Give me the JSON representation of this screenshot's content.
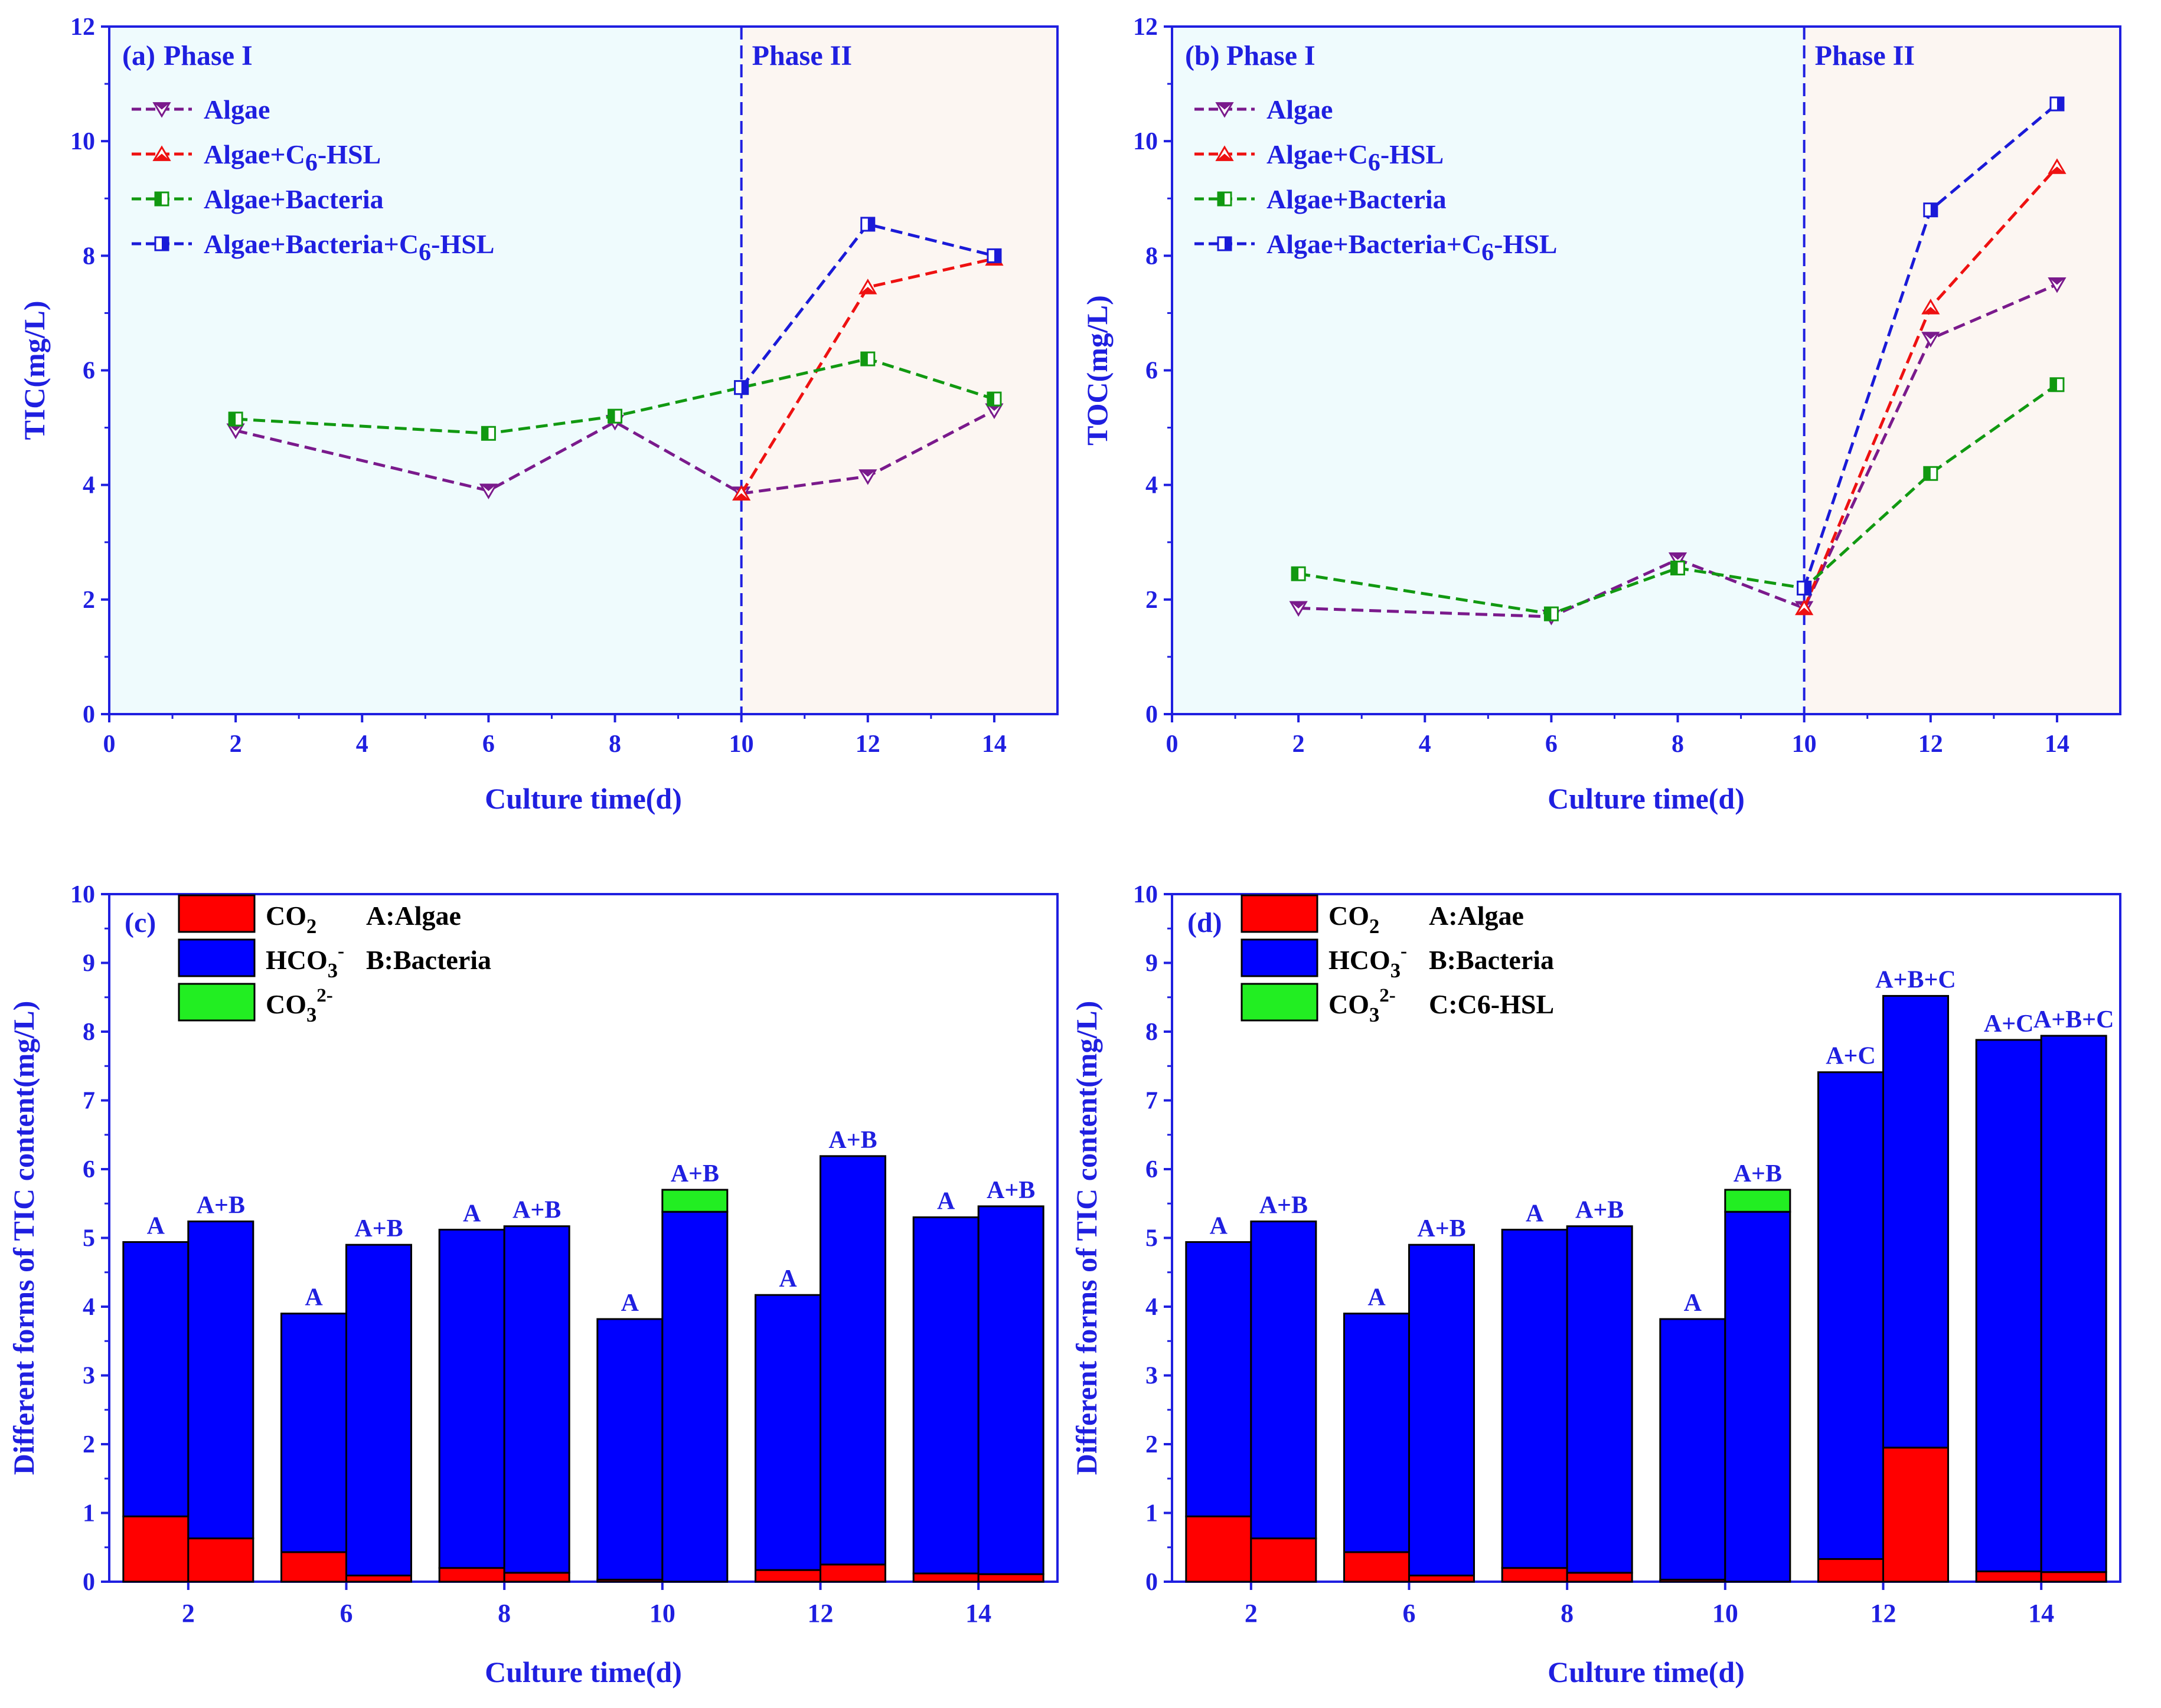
{
  "colors": {
    "axis": "#1f1fe0",
    "phase1_bg": "#effbfd",
    "phase2_bg": "#fcf6f2",
    "algae": "#7a1a8c",
    "algae_c6": "#ee1111",
    "algae_bacteria": "#119911",
    "algae_bacteria_c6": "#1a1ad8",
    "co2": "#ff0000",
    "hco3": "#0000ff",
    "co3": "#22ee22"
  },
  "chart_data": [
    {
      "id": "a",
      "type": "line",
      "panel_label": "(a)",
      "phase_labels": [
        "Phase I",
        "Phase II"
      ],
      "phase_boundary_x": 10,
      "xlabel": "Culture time(d)",
      "ylabel": "TIC(mg/L)",
      "xlim": [
        0,
        15
      ],
      "ylim": [
        0,
        12
      ],
      "xticks": [
        "0",
        "2",
        "4",
        "6",
        "8",
        "10",
        "12",
        "14"
      ],
      "yticks": [
        "0",
        "2",
        "4",
        "6",
        "8",
        "10",
        "12"
      ],
      "legend": {
        "location": "top-left",
        "entries": [
          {
            "name": "Algae",
            "marker": "triangle-down"
          },
          {
            "name": "Algae+C",
            "sub": "6",
            "suffix": "-HSL",
            "marker": "triangle-up"
          },
          {
            "name": "Algae+Bacteria",
            "marker": "square"
          },
          {
            "name": "Algae+Bacteria+C",
            "sub": "6",
            "suffix": "-HSL",
            "marker": "square"
          }
        ]
      },
      "series": [
        {
          "name": "Algae",
          "x": [
            2,
            6,
            8,
            10,
            12,
            14
          ],
          "y": [
            4.95,
            3.9,
            5.1,
            3.85,
            4.15,
            5.3
          ]
        },
        {
          "name": "Algae+C6-HSL",
          "x": [
            10,
            12,
            14
          ],
          "y": [
            3.85,
            7.45,
            7.95
          ]
        },
        {
          "name": "Algae+Bacteria",
          "x": [
            2,
            6,
            8,
            10,
            12,
            14
          ],
          "y": [
            5.15,
            4.9,
            5.2,
            5.7,
            6.2,
            5.5
          ]
        },
        {
          "name": "Algae+Bacteria+C6-HSL",
          "x": [
            10,
            12,
            14
          ],
          "y": [
            5.7,
            8.55,
            8.0
          ]
        }
      ]
    },
    {
      "id": "b",
      "type": "line",
      "panel_label": "(b)",
      "phase_labels": [
        "Phase I",
        "Phase II"
      ],
      "phase_boundary_x": 10,
      "xlabel": "Culture time(d)",
      "ylabel": "TOC(mg/L)",
      "xlim": [
        0,
        15
      ],
      "ylim": [
        0,
        12
      ],
      "xticks": [
        "0",
        "2",
        "4",
        "6",
        "8",
        "10",
        "12",
        "14"
      ],
      "yticks": [
        "0",
        "2",
        "4",
        "6",
        "8",
        "10",
        "12"
      ],
      "legend": {
        "location": "top-left",
        "entries": [
          {
            "name": "Algae",
            "marker": "triangle-down"
          },
          {
            "name": "Algae+C",
            "sub": "6",
            "suffix": "-HSL",
            "marker": "triangle-up"
          },
          {
            "name": "Algae+Bacteria",
            "marker": "square"
          },
          {
            "name": "Algae+Bacteria+C",
            "sub": "6",
            "suffix": "-HSL",
            "marker": "square"
          }
        ]
      },
      "series": [
        {
          "name": "Algae",
          "x": [
            2,
            6,
            8,
            10,
            12,
            14
          ],
          "y": [
            1.85,
            1.7,
            2.7,
            1.85,
            6.55,
            7.5
          ]
        },
        {
          "name": "Algae+C6-HSL",
          "x": [
            10,
            12,
            14
          ],
          "y": [
            1.85,
            7.1,
            9.55
          ]
        },
        {
          "name": "Algae+Bacteria",
          "x": [
            2,
            6,
            8,
            10,
            12,
            14
          ],
          "y": [
            2.45,
            1.75,
            2.55,
            2.2,
            4.2,
            5.75
          ]
        },
        {
          "name": "Algae+Bacteria+C6-HSL",
          "x": [
            10,
            12,
            14
          ],
          "y": [
            2.2,
            8.8,
            10.65
          ]
        }
      ]
    },
    {
      "id": "c",
      "type": "bar",
      "stacked": true,
      "panel_label": "(c)",
      "xlabel": "Culture time(d)",
      "ylabel": "Different forms of TIC content(mg/L)",
      "ylim": [
        0,
        10
      ],
      "yticks": [
        "0",
        "1",
        "2",
        "3",
        "4",
        "5",
        "6",
        "7",
        "8",
        "9",
        "10"
      ],
      "categories": [
        "2",
        "6",
        "8",
        "10",
        "12",
        "14"
      ],
      "legend": {
        "location": "top-left",
        "entries": [
          {
            "base": "CO",
            "sub": "2",
            "sup": ""
          },
          {
            "base": "HCO",
            "sub": "3",
            "sup": "-"
          },
          {
            "base": "CO",
            "sub": "3",
            "sup": "2-"
          }
        ]
      },
      "key_lines": [
        "A:Algae",
        "B:Bacteria"
      ],
      "bars": [
        {
          "day": "2",
          "label": "A",
          "co2": 0.95,
          "hco3": 3.99,
          "co3": 0
        },
        {
          "day": "2",
          "label": "A+B",
          "co2": 0.63,
          "hco3": 4.61,
          "co3": 0
        },
        {
          "day": "6",
          "label": "A",
          "co2": 0.43,
          "hco3": 3.47,
          "co3": 0
        },
        {
          "day": "6",
          "label": "A+B",
          "co2": 0.09,
          "hco3": 4.81,
          "co3": 0
        },
        {
          "day": "8",
          "label": "A",
          "co2": 0.2,
          "hco3": 4.92,
          "co3": 0
        },
        {
          "day": "8",
          "label": "A+B",
          "co2": 0.13,
          "hco3": 5.04,
          "co3": 0
        },
        {
          "day": "10",
          "label": "A",
          "co2": 0.03,
          "hco3": 3.79,
          "co3": 0
        },
        {
          "day": "10",
          "label": "A+B",
          "co2": 0.0,
          "hco3": 5.38,
          "co3": 0.32
        },
        {
          "day": "12",
          "label": "A",
          "co2": 0.17,
          "hco3": 4.0,
          "co3": 0
        },
        {
          "day": "12",
          "label": "A+B",
          "co2": 0.25,
          "hco3": 5.94,
          "co3": 0
        },
        {
          "day": "14",
          "label": "A",
          "co2": 0.12,
          "hco3": 5.18,
          "co3": 0
        },
        {
          "day": "14",
          "label": "A+B",
          "co2": 0.11,
          "hco3": 5.35,
          "co3": 0
        }
      ]
    },
    {
      "id": "d",
      "type": "bar",
      "stacked": true,
      "panel_label": "(d)",
      "xlabel": "Culture time(d)",
      "ylabel": "Different forms of TIC content(mg/L)",
      "ylim": [
        0,
        10
      ],
      "yticks": [
        "0",
        "1",
        "2",
        "3",
        "4",
        "5",
        "6",
        "7",
        "8",
        "9",
        "10"
      ],
      "categories": [
        "2",
        "6",
        "8",
        "10",
        "12",
        "14"
      ],
      "legend": {
        "location": "top-left",
        "entries": [
          {
            "base": "CO",
            "sub": "2",
            "sup": ""
          },
          {
            "base": "HCO",
            "sub": "3",
            "sup": "-"
          },
          {
            "base": "CO",
            "sub": "3",
            "sup": "2-"
          }
        ]
      },
      "key_lines": [
        "A:Algae",
        "B:Bacteria",
        "C:C6-HSL"
      ],
      "bars": [
        {
          "day": "2",
          "label": "A",
          "co2": 0.95,
          "hco3": 3.99,
          "co3": 0
        },
        {
          "day": "2",
          "label": "A+B",
          "co2": 0.63,
          "hco3": 4.61,
          "co3": 0
        },
        {
          "day": "6",
          "label": "A",
          "co2": 0.43,
          "hco3": 3.47,
          "co3": 0
        },
        {
          "day": "6",
          "label": "A+B",
          "co2": 0.09,
          "hco3": 4.81,
          "co3": 0
        },
        {
          "day": "8",
          "label": "A",
          "co2": 0.2,
          "hco3": 4.92,
          "co3": 0
        },
        {
          "day": "8",
          "label": "A+B",
          "co2": 0.13,
          "hco3": 5.04,
          "co3": 0
        },
        {
          "day": "10",
          "label": "A",
          "co2": 0.03,
          "hco3": 3.79,
          "co3": 0
        },
        {
          "day": "10",
          "label": "A+B",
          "co2": 0.0,
          "hco3": 5.38,
          "co3": 0.32
        },
        {
          "day": "12",
          "label": "A+C",
          "co2": 0.33,
          "hco3": 7.08,
          "co3": 0
        },
        {
          "day": "12",
          "label": "A+B+C",
          "co2": 1.95,
          "hco3": 6.57,
          "co3": 0
        },
        {
          "day": "14",
          "label": "A+C",
          "co2": 0.15,
          "hco3": 7.73,
          "co3": 0
        },
        {
          "day": "14",
          "label": "A+B+C",
          "co2": 0.14,
          "hco3": 7.8,
          "co3": 0
        }
      ]
    }
  ]
}
